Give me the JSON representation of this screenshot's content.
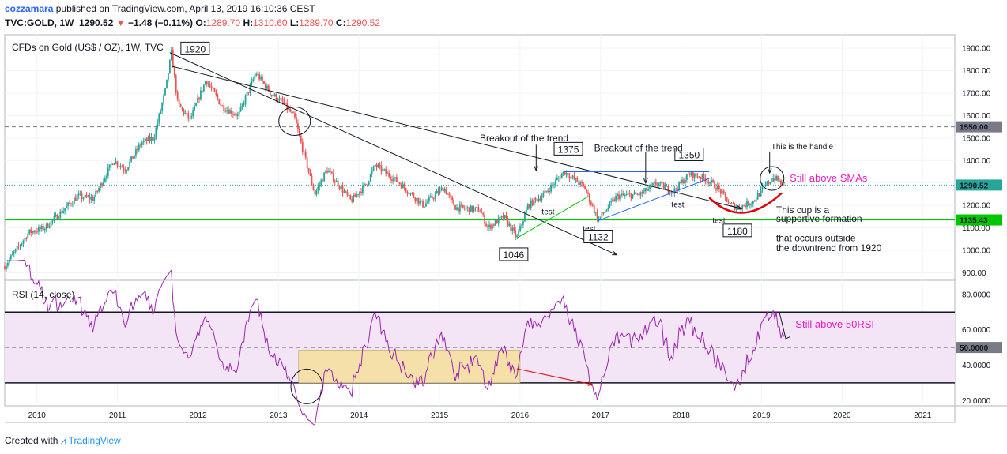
{
  "header": {
    "user": "cozzamara",
    "published": "published on TradingView.com, April 13, 2019 16:10:36 CEST",
    "symbol": "TVC:GOLD, 1W",
    "price": "1290.52",
    "change": "−1.48 (−0.11%)",
    "o_label": "O:",
    "o": "1289.70",
    "h_label": "H:",
    "h": "1310.60",
    "l_label": "L:",
    "l": "1289.70",
    "c_label": "C:",
    "c": "1290.52"
  },
  "footer": {
    "created": "Created with",
    "brand": "TradingView"
  },
  "colors": {
    "up": "#26a69a",
    "down": "#ef5350",
    "rsi": "#9c27b0",
    "rsi_band": "#f3e5f5",
    "highlight": "#f5e0a9",
    "green_line": "#00c800",
    "magenta_text": "#e91ec2",
    "blue_line": "#2962ff",
    "arrow_red": "#e00000"
  },
  "chart_data": [
    {
      "type": "candlestick",
      "title": "CFDs on Gold (US$ / OZ), 1W, TVC",
      "ylim": [
        870,
        1960
      ],
      "y_ticks": [
        "1900.00",
        "1800.00",
        "1700.00",
        "1600.00",
        "1500.00",
        "1400.00",
        "1300.00",
        "1200.00",
        "1100.00",
        "1000.00",
        "900.00"
      ],
      "x_ticks": [
        "2010",
        "2011",
        "2012",
        "2013",
        "2014",
        "2015",
        "2016",
        "2017",
        "2018",
        "2019",
        "2020",
        "2021"
      ],
      "xlim": [
        2009.6,
        2021.4
      ],
      "price_labels": [
        "1550.00",
        "1290.52",
        "1135.43"
      ],
      "key_points": [
        {
          "x": 2011.67,
          "y": 1920
        },
        {
          "x": 2015.96,
          "y": 1046
        },
        {
          "x": 2016.6,
          "y": 1375
        },
        {
          "x": 2016.97,
          "y": 1132
        },
        {
          "x": 2018.1,
          "y": 1350
        },
        {
          "x": 2018.7,
          "y": 1180
        },
        {
          "x": 2019.28,
          "y": 1290.52
        }
      ],
      "annotations": {
        "label_1920": "1920",
        "label_1375": "1375",
        "label_1350": "1350",
        "label_1046": "1046",
        "label_1132": "1132",
        "label_1180": "1180",
        "breakout1": "Breakout of the trend",
        "breakout2": "Breakout of the trend",
        "handle": "This is the handle",
        "still_smas": "Still above SMAs",
        "cup1": "This cup is a",
        "cup2": "supportive formation",
        "occurs1": "that occurs outside",
        "occurs2": "the downtrend from 1920",
        "test1": "test",
        "test2": "test",
        "test3": "test",
        "test4": "test"
      }
    },
    {
      "type": "line",
      "title": "RSI (14, close)",
      "ylim": [
        17,
        88
      ],
      "y_ticks": [
        "80.0000",
        "60.0000",
        "40.0000",
        "20.0000"
      ],
      "levels": [
        70,
        50,
        30
      ],
      "level_label": "50.0000",
      "annotation": "Still above 50RSI"
    }
  ]
}
